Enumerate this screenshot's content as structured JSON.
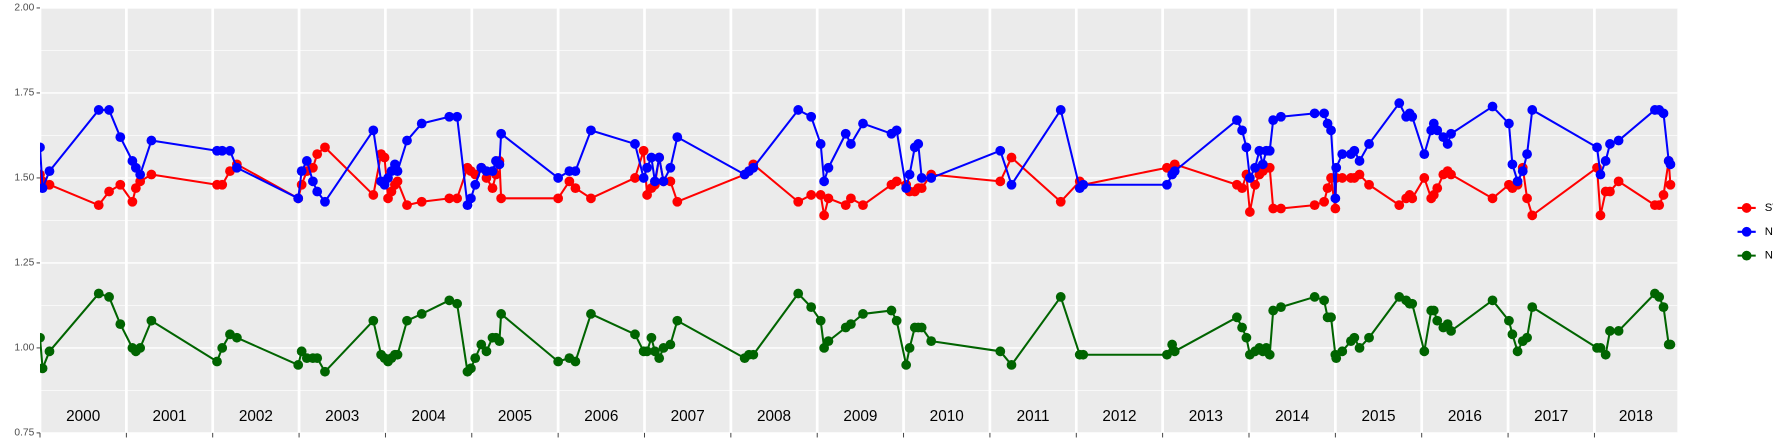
{
  "chart_data": {
    "type": "line",
    "xlim": [
      2000,
      2018.96
    ],
    "ylim": [
      0.75,
      2.0
    ],
    "xticks": [
      2000,
      2001,
      2002,
      2003,
      2004,
      2005,
      2006,
      2007,
      2008,
      2009,
      2010,
      2011,
      2012,
      2013,
      2014,
      2015,
      2016,
      2017,
      2018
    ],
    "year_labels": [
      "2000",
      "2001",
      "2002",
      "2003",
      "2004",
      "2005",
      "2006",
      "2007",
      "2008",
      "2009",
      "2010",
      "2011",
      "2012",
      "2013",
      "2014",
      "2015",
      "2016",
      "2017",
      "2018"
    ],
    "yticks": [
      {
        "value": 0.75,
        "label": "0.75"
      },
      {
        "value": 1.0,
        "label": "1.00"
      },
      {
        "value": 1.25,
        "label": "1.25"
      },
      {
        "value": 1.5,
        "label": "1.50"
      },
      {
        "value": 1.75,
        "label": "1.75"
      },
      {
        "value": 2.0,
        "label": "2.00"
      }
    ],
    "grid": true,
    "legend": "right",
    "x": [
      2000.0,
      2000.03,
      2000.11,
      2000.68,
      2000.8,
      2000.93,
      2001.07,
      2001.11,
      2001.16,
      2001.29,
      2002.05,
      2002.11,
      2002.2,
      2002.28,
      2002.99,
      2003.03,
      2003.09,
      2003.16,
      2003.21,
      2003.3,
      2003.86,
      2003.95,
      2003.99,
      2004.03,
      2004.07,
      2004.11,
      2004.14,
      2004.25,
      2004.42,
      2004.74,
      2004.83,
      2004.95,
      2004.99,
      2005.04,
      2005.11,
      2005.17,
      2005.24,
      2005.28,
      2005.32,
      2005.34,
      2006.0,
      2006.13,
      2006.2,
      2006.38,
      2006.89,
      2006.99,
      2007.03,
      2007.08,
      2007.12,
      2007.17,
      2007.22,
      2007.3,
      2007.38,
      2008.16,
      2008.21,
      2008.26,
      2008.78,
      2008.93,
      2009.04,
      2009.08,
      2009.13,
      2009.33,
      2009.39,
      2009.53,
      2009.86,
      2009.92,
      2010.03,
      2010.07,
      2010.13,
      2010.17,
      2010.21,
      2010.32,
      2011.12,
      2011.25,
      2011.82,
      2012.04,
      2012.08,
      2013.05,
      2013.11,
      2013.14,
      2013.86,
      2013.92,
      2013.97,
      2014.01,
      2014.07,
      2014.12,
      2014.16,
      2014.2,
      2014.24,
      2014.28,
      2014.37,
      2014.76,
      2014.87,
      2014.91,
      2014.95,
      2015.0,
      2015.01,
      2015.08,
      2015.18,
      2015.22,
      2015.28,
      2015.39,
      2015.74,
      2015.82,
      2015.86,
      2015.89,
      2016.03,
      2016.11,
      2016.14,
      2016.18,
      2016.25,
      2016.3,
      2016.34,
      2016.82,
      2017.01,
      2017.05,
      2017.11,
      2017.17,
      2017.22,
      2017.28,
      2018.03,
      2018.07,
      2018.13,
      2018.18,
      2018.28,
      2018.7,
      2018.75,
      2018.8,
      2018.86,
      2018.88
    ],
    "series": [
      {
        "name": "SWIR",
        "color": "#ff0000",
        "values": [
          1.51,
          1.49,
          1.48,
          1.42,
          1.46,
          1.48,
          1.43,
          1.47,
          1.49,
          1.51,
          1.48,
          1.48,
          1.52,
          1.54,
          1.44,
          1.48,
          1.52,
          1.53,
          1.57,
          1.59,
          1.45,
          1.57,
          1.56,
          1.44,
          1.46,
          1.48,
          1.49,
          1.42,
          1.43,
          1.44,
          1.44,
          1.53,
          1.52,
          1.51,
          1.53,
          1.5,
          1.47,
          1.51,
          1.55,
          1.44,
          1.44,
          1.49,
          1.47,
          1.44,
          1.5,
          1.58,
          1.45,
          1.47,
          1.48,
          1.56,
          1.49,
          1.49,
          1.43,
          1.51,
          1.52,
          1.54,
          1.43,
          1.45,
          1.45,
          1.39,
          1.44,
          1.42,
          1.44,
          1.42,
          1.48,
          1.49,
          1.48,
          1.46,
          1.46,
          1.47,
          1.47,
          1.51,
          1.49,
          1.56,
          1.43,
          1.49,
          1.48,
          1.53,
          1.52,
          1.54,
          1.48,
          1.47,
          1.51,
          1.4,
          1.48,
          1.51,
          1.52,
          1.53,
          1.53,
          1.41,
          1.41,
          1.42,
          1.43,
          1.47,
          1.5,
          1.41,
          1.5,
          1.5,
          1.5,
          1.5,
          1.51,
          1.48,
          1.42,
          1.44,
          1.45,
          1.44,
          1.5,
          1.44,
          1.45,
          1.47,
          1.51,
          1.52,
          1.51,
          1.44,
          1.48,
          1.47,
          1.48,
          1.53,
          1.44,
          1.39,
          1.53,
          1.39,
          1.46,
          1.46,
          1.49,
          1.42,
          1.42,
          1.45,
          1.55,
          1.48
        ]
      },
      {
        "name": "NDVI",
        "color": "#0000ff",
        "values": [
          1.59,
          1.47,
          1.52,
          1.7,
          1.7,
          1.62,
          1.55,
          1.53,
          1.51,
          1.61,
          1.58,
          1.58,
          1.58,
          1.53,
          1.44,
          1.52,
          1.55,
          1.49,
          1.46,
          1.43,
          1.64,
          1.49,
          1.48,
          1.5,
          1.52,
          1.54,
          1.52,
          1.61,
          1.66,
          1.68,
          1.68,
          1.42,
          1.44,
          1.48,
          1.53,
          1.52,
          1.52,
          1.55,
          1.54,
          1.63,
          1.5,
          1.52,
          1.52,
          1.64,
          1.6,
          1.5,
          1.53,
          1.56,
          1.49,
          1.56,
          1.49,
          1.53,
          1.62,
          1.51,
          1.52,
          1.53,
          1.7,
          1.68,
          1.6,
          1.49,
          1.53,
          1.63,
          1.6,
          1.66,
          1.63,
          1.64,
          1.47,
          1.51,
          1.59,
          1.6,
          1.5,
          1.5,
          1.58,
          1.48,
          1.7,
          1.47,
          1.48,
          1.48,
          1.51,
          1.52,
          1.67,
          1.64,
          1.59,
          1.5,
          1.53,
          1.58,
          1.54,
          1.58,
          1.58,
          1.67,
          1.68,
          1.69,
          1.69,
          1.66,
          1.64,
          1.44,
          1.53,
          1.57,
          1.57,
          1.58,
          1.55,
          1.6,
          1.72,
          1.68,
          1.69,
          1.68,
          1.57,
          1.64,
          1.66,
          1.64,
          1.62,
          1.6,
          1.63,
          1.71,
          1.66,
          1.54,
          1.49,
          1.52,
          1.57,
          1.7,
          1.59,
          1.51,
          1.55,
          1.6,
          1.61,
          1.7,
          1.7,
          1.69,
          1.55,
          1.54
        ]
      },
      {
        "name": "NDWI",
        "color": "#006400",
        "values": [
          1.03,
          0.94,
          0.99,
          1.16,
          1.15,
          1.07,
          1.0,
          0.99,
          1.0,
          1.08,
          0.96,
          1.0,
          1.04,
          1.03,
          0.95,
          0.99,
          0.97,
          0.97,
          0.97,
          0.93,
          1.08,
          0.98,
          0.97,
          0.96,
          0.97,
          0.98,
          0.98,
          1.08,
          1.1,
          1.14,
          1.13,
          0.93,
          0.94,
          0.97,
          1.01,
          0.99,
          1.03,
          1.03,
          1.02,
          1.1,
          0.96,
          0.97,
          0.96,
          1.1,
          1.04,
          0.99,
          0.99,
          1.03,
          0.99,
          0.97,
          1.0,
          1.01,
          1.08,
          0.97,
          0.98,
          0.98,
          1.16,
          1.12,
          1.08,
          1.0,
          1.02,
          1.06,
          1.07,
          1.1,
          1.11,
          1.08,
          0.95,
          1.0,
          1.06,
          1.06,
          1.06,
          1.02,
          0.99,
          0.95,
          1.15,
          0.98,
          0.98,
          0.98,
          1.01,
          0.99,
          1.09,
          1.06,
          1.03,
          0.98,
          0.99,
          1.0,
          0.99,
          1.0,
          0.98,
          1.11,
          1.12,
          1.15,
          1.14,
          1.09,
          1.09,
          0.98,
          0.97,
          0.99,
          1.02,
          1.03,
          1.0,
          1.03,
          1.15,
          1.14,
          1.13,
          1.13,
          0.99,
          1.11,
          1.11,
          1.08,
          1.06,
          1.07,
          1.05,
          1.14,
          1.08,
          1.04,
          0.99,
          1.02,
          1.03,
          1.12,
          1.0,
          1.0,
          0.98,
          1.05,
          1.05,
          1.16,
          1.15,
          1.12,
          1.01,
          1.01
        ]
      }
    ]
  }
}
